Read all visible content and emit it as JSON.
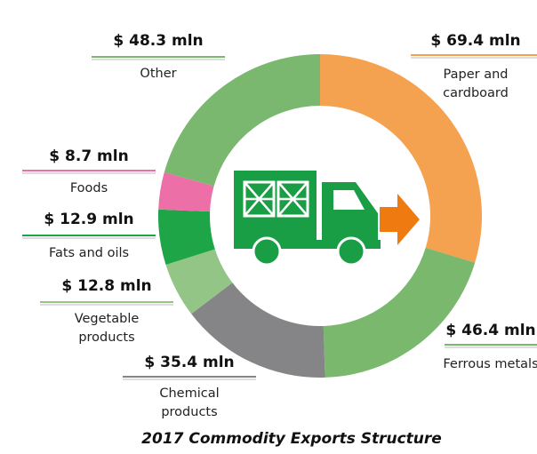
{
  "chart_data": {
    "type": "donut",
    "title": "2017 Commodity Exports Structure",
    "categories": [
      "Paper and cardboard",
      "Ferrous metals",
      "Chemical products",
      "Vegetable products",
      "Fats and oils",
      "Foods",
      "Other"
    ],
    "values": [
      69.4,
      46.4,
      35.4,
      12.8,
      12.9,
      8.7,
      48.3
    ],
    "value_labels": [
      "$ 69.4 mln",
      "$ 46.4 mln",
      "$ 35.4 mln",
      "$ 12.8 mln",
      "$ 12.9 mln",
      "$ 8.7 mln",
      "$ 48.3 mln"
    ],
    "colors": [
      "#f4a24f",
      "#7ab86e",
      "#858587",
      "#93c587",
      "#1ea548",
      "#ec6fa8",
      "#7ab76f"
    ]
  }
}
